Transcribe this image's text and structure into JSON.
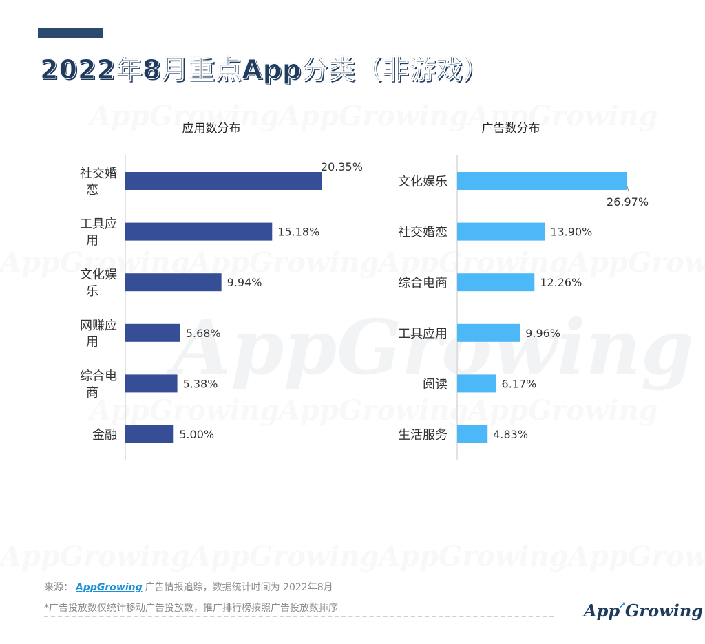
{
  "title": "2022年8月重点App分类（非游戏）",
  "watermark": "AppGrowing",
  "chart_data": [
    {
      "type": "bar",
      "orientation": "horizontal",
      "title": "应用数分布",
      "color": "#364e96",
      "categories": [
        "社交婚恋",
        "工具应用",
        "文化娱乐",
        "网赚应用",
        "综合电商",
        "金融"
      ],
      "values": [
        20.35,
        15.18,
        9.94,
        5.68,
        5.38,
        5.0
      ],
      "value_labels": [
        "20.35%",
        "15.18%",
        "9.94%",
        "5.68%",
        "5.38%",
        "5.00%"
      ]
    },
    {
      "type": "bar",
      "orientation": "horizontal",
      "title": "广告数分布",
      "color": "#4db8f7",
      "categories": [
        "文化娱乐",
        "社交婚恋",
        "综合电商",
        "工具应用",
        "阅读",
        "生活服务"
      ],
      "values": [
        26.97,
        13.9,
        12.26,
        9.96,
        6.17,
        4.83
      ],
      "value_labels": [
        "26.97%",
        "13.90%",
        "12.26%",
        "9.96%",
        "6.17%",
        "4.83%"
      ]
    }
  ],
  "footer": {
    "source_prefix": "来源：",
    "source_brand": "AppGrowing",
    "source_suffix": "广告情报追踪，数据统计时间为 2022年8月",
    "note": "*广告投放数仅统计移动广告投放数，推广排行榜按照广告投放数排序"
  },
  "logo": {
    "part1": "App",
    "arrow": "↗",
    "part2": "Growing"
  }
}
